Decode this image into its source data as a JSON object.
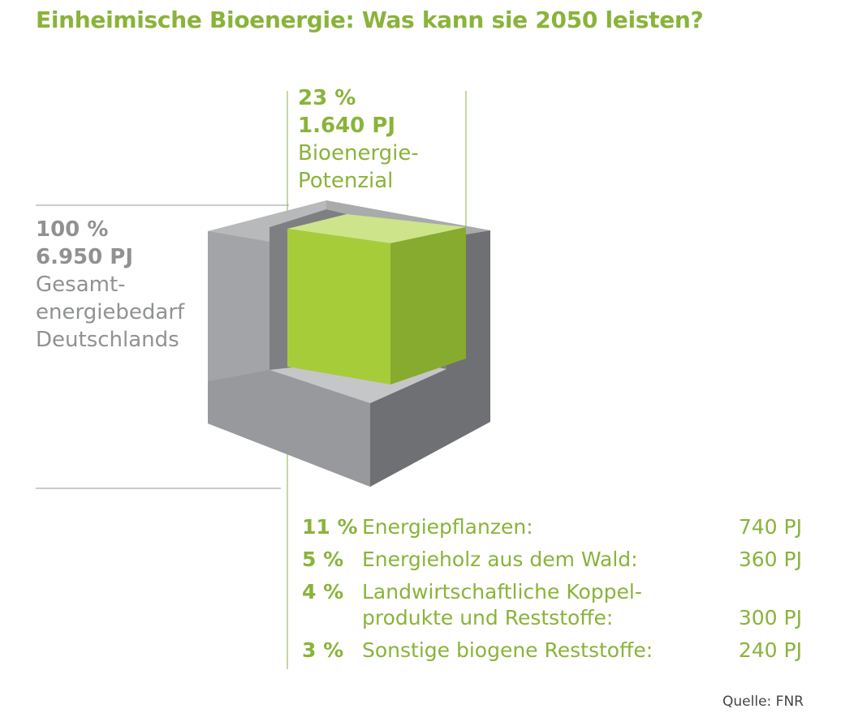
{
  "title": "Einheimische Bioenergie: Was kann sie 2050 leisten?",
  "bio": {
    "pct": "23 %",
    "pj": "1.640 PJ",
    "line1": "Bioenergie-",
    "line2": "Potenzial"
  },
  "total": {
    "pct": "100 %",
    "pj": "6.950 PJ",
    "line1": "Gesamt-",
    "line2": "energiebedarf",
    "line3": "Deutschlands"
  },
  "breakdown": [
    {
      "pct": "11 %",
      "lines": [
        "Energiepflanzen:"
      ],
      "value": "740 PJ"
    },
    {
      "pct": "5 %",
      "lines": [
        "Energieholz aus dem Wald:"
      ],
      "value": "360 PJ"
    },
    {
      "pct": "4 %",
      "lines": [
        "Landwirtschaftliche Koppel-",
        "produkte und Reststoffe:"
      ],
      "value": "300 PJ"
    },
    {
      "pct": "3 %",
      "lines": [
        "Sonstige biogene Reststoffe:"
      ],
      "value": "240 PJ"
    }
  ],
  "source": "Quelle: FNR",
  "colors": {
    "green": "#8ab33a",
    "gray_text": "#8f9193"
  }
}
